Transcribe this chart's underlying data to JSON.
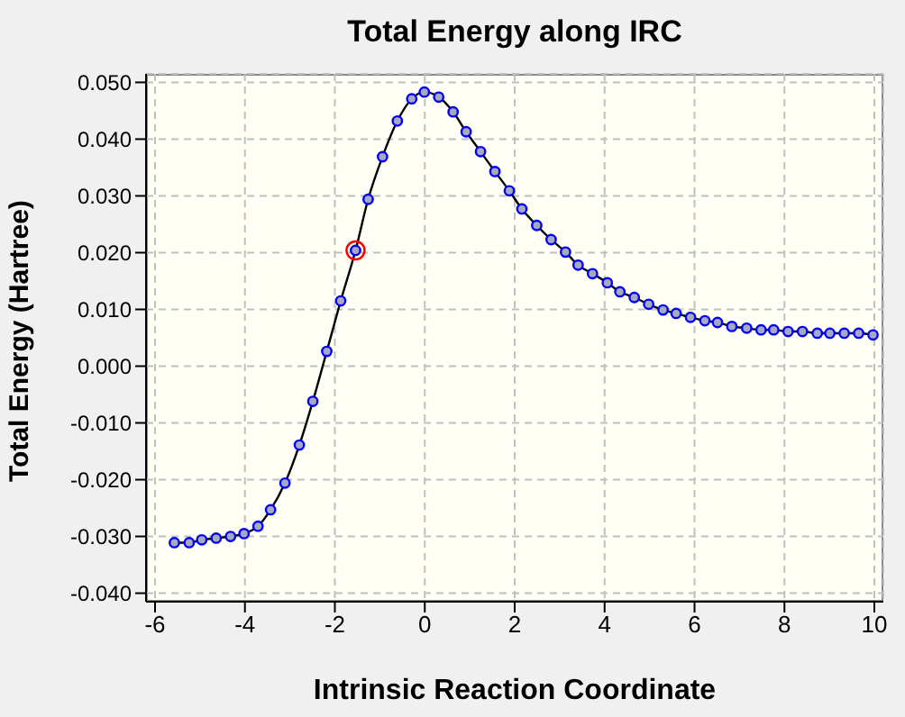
{
  "chart_data": {
    "type": "line",
    "title": "Total Energy along IRC",
    "xlabel": "Intrinsic Reaction Coordinate",
    "ylabel": "Total Energy (Hartree)",
    "xlim": [
      -6.2,
      10.2
    ],
    "xticks": [
      -6,
      -4,
      -2,
      0,
      2,
      4,
      6,
      8,
      10
    ],
    "ylim": [
      -0.0415,
      0.0515
    ],
    "yticks": [
      {
        "value": -0.04,
        "label": "-0.040"
      },
      {
        "value": -0.03,
        "label": "-0.030"
      },
      {
        "value": -0.02,
        "label": "-0.020"
      },
      {
        "value": -0.01,
        "label": "-0.010"
      },
      {
        "value": 0,
        "label": "0.000"
      },
      {
        "value": 0.01,
        "label": "0.010"
      },
      {
        "value": 0.02,
        "label": "0.020"
      },
      {
        "value": 0.03,
        "label": "0.030"
      },
      {
        "value": 0.04,
        "label": "0.040"
      },
      {
        "value": 0.05,
        "label": "0.050"
      }
    ],
    "grid": true,
    "marker": "circle",
    "line_style": "solid",
    "series": [
      {
        "color": "#000000",
        "x": [
          -5.57,
          -5.24,
          -4.96,
          -4.64,
          -4.32,
          -4.02,
          -3.71,
          -3.43,
          -3.11,
          -2.79,
          -2.49,
          -2.18,
          -1.87,
          -1.54,
          -1.26,
          -0.94,
          -0.61,
          -0.29,
          -0.01,
          0.31,
          0.63,
          0.92,
          1.24,
          1.56,
          1.88,
          2.16,
          2.49,
          2.81,
          3.13,
          3.41,
          3.73,
          4.06,
          4.34,
          4.66,
          4.98,
          5.3,
          5.59,
          5.91,
          6.23,
          6.51,
          6.83,
          7.16,
          7.48,
          7.76,
          8.08,
          8.4,
          8.73,
          9.01,
          9.33,
          9.65,
          9.97
        ],
        "values": [
          -0.0311,
          -0.0311,
          -0.0306,
          -0.0303,
          -0.03,
          -0.0295,
          -0.0282,
          -0.0253,
          -0.0206,
          -0.0139,
          -0.0062,
          0.0026,
          0.0115,
          0.0204,
          0.0294,
          0.0369,
          0.0432,
          0.0471,
          0.0483,
          0.0474,
          0.0448,
          0.0413,
          0.0378,
          0.0343,
          0.0309,
          0.0277,
          0.0248,
          0.0223,
          0.0201,
          0.0178,
          0.0163,
          0.0147,
          0.0131,
          0.0121,
          0.0109,
          0.0099,
          0.0093,
          0.0086,
          0.008,
          0.0077,
          0.007,
          0.0067,
          0.0064,
          0.0064,
          0.0061,
          0.0061,
          0.0058,
          0.0058,
          0.0058,
          0.0058,
          0.0055
        ]
      },
      {
        "type": "scatter",
        "color": "#ff0000",
        "x": [
          -1.54
        ],
        "values": [
          0.0204
        ]
      }
    ]
  }
}
